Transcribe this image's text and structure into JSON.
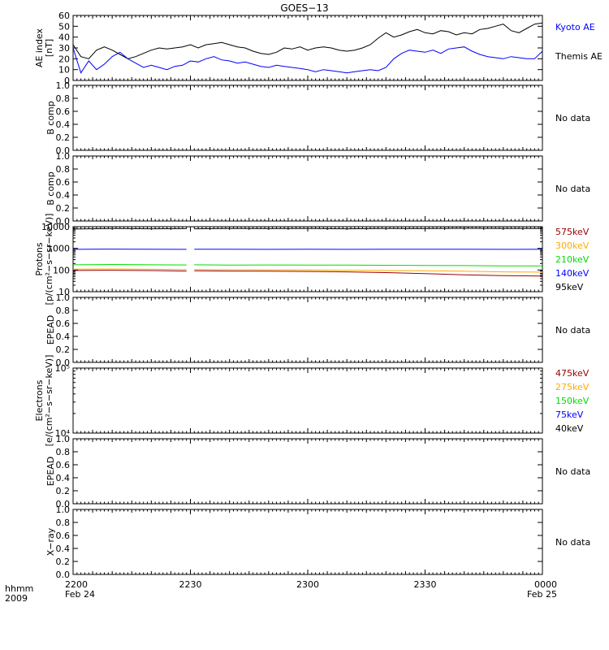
{
  "title": "GOES−13",
  "time_axis": {
    "label_line1": "hhmm",
    "label_line2": "2009",
    "start_min": 0,
    "end_min": 120,
    "ticks": [
      {
        "min": 0,
        "label": "2200",
        "sub": "Feb 24"
      },
      {
        "min": 30,
        "label": "2230",
        "sub": ""
      },
      {
        "min": 60,
        "label": "2300",
        "sub": ""
      },
      {
        "min": 90,
        "label": "2330",
        "sub": ""
      },
      {
        "min": 120,
        "label": "0000",
        "sub": "Feb 25"
      }
    ]
  },
  "colors": {
    "black": "#000000",
    "blue": "#0000ff",
    "green": "#00dd00",
    "orange": "#ffaa00",
    "darkred": "#990000"
  },
  "chart_data": [
    {
      "id": "ae",
      "type": "line",
      "ylabel": "AE index\n[nT]",
      "ylim": [
        0,
        60
      ],
      "yticks": [
        0,
        10,
        20,
        30,
        40,
        50,
        60
      ],
      "legend": [
        {
          "text": "Kyoto AE",
          "color": "#0000ff"
        },
        {
          "text": "Themis AE",
          "color": "#000000"
        }
      ],
      "series": [
        {
          "name": "Themis AE",
          "color": "#000000",
          "x": [
            0,
            2,
            4,
            6,
            8,
            10,
            12,
            14,
            16,
            18,
            20,
            22,
            24,
            26,
            28,
            30,
            32,
            34,
            36,
            38,
            40,
            42,
            44,
            46,
            48,
            50,
            52,
            54,
            56,
            58,
            60,
            62,
            64,
            66,
            68,
            70,
            72,
            74,
            76,
            78,
            80,
            82,
            84,
            86,
            88,
            90,
            92,
            94,
            96,
            98,
            100,
            102,
            104,
            106,
            108,
            110,
            112,
            114,
            116,
            118,
            120
          ],
          "y": [
            33,
            22,
            20,
            28,
            31,
            28,
            24,
            20,
            22,
            25,
            28,
            30,
            29,
            30,
            31,
            33,
            30,
            33,
            34,
            35,
            33,
            31,
            30,
            27,
            25,
            24,
            26,
            30,
            29,
            31,
            28,
            30,
            31,
            30,
            28,
            27,
            28,
            30,
            33,
            39,
            44,
            40,
            42,
            45,
            47,
            44,
            43,
            46,
            45,
            42,
            44,
            43,
            47,
            48,
            50,
            52,
            46,
            44,
            48,
            52,
            53
          ]
        },
        {
          "name": "Kyoto AE",
          "color": "#0000ff",
          "x": [
            0,
            2,
            4,
            6,
            8,
            10,
            12,
            14,
            16,
            18,
            20,
            22,
            24,
            26,
            28,
            30,
            32,
            34,
            36,
            38,
            40,
            42,
            44,
            46,
            48,
            50,
            52,
            54,
            56,
            58,
            60,
            62,
            64,
            66,
            68,
            70,
            72,
            74,
            76,
            78,
            80,
            82,
            84,
            86,
            88,
            90,
            92,
            94,
            96,
            98,
            100,
            102,
            104,
            106,
            108,
            110,
            112,
            114,
            116,
            118,
            120
          ],
          "y": [
            30,
            7,
            18,
            10,
            15,
            22,
            26,
            20,
            16,
            12,
            14,
            12,
            10,
            13,
            14,
            18,
            17,
            20,
            22,
            19,
            18,
            16,
            17,
            15,
            13,
            12,
            14,
            13,
            12,
            11,
            10,
            8,
            10,
            9,
            8,
            7,
            8,
            9,
            10,
            9,
            12,
            20,
            25,
            28,
            27,
            26,
            28,
            25,
            29,
            30,
            31,
            27,
            24,
            22,
            21,
            20,
            22,
            21,
            20,
            20,
            27
          ]
        }
      ]
    },
    {
      "id": "b1",
      "type": "line",
      "ylabel": "B comp",
      "ylim": [
        0,
        1
      ],
      "yticks": [
        0,
        0.2,
        0.4,
        0.6,
        0.8,
        1.0
      ],
      "yticklabels": [
        "0.0",
        "0.2",
        "0.4",
        "0.6",
        "0.8",
        "1.0"
      ],
      "nodata": "No data",
      "series": []
    },
    {
      "id": "b2",
      "type": "line",
      "ylabel": "B comp",
      "ylim": [
        0,
        1
      ],
      "yticks": [
        0,
        0.2,
        0.4,
        0.6,
        0.8,
        1.0
      ],
      "yticklabels": [
        "0.0",
        "0.2",
        "0.4",
        "0.6",
        "0.8",
        "1.0"
      ],
      "nodata": "No data",
      "series": []
    },
    {
      "id": "protons",
      "type": "line",
      "log": true,
      "ylabel": "Protons\n[p/(cm²−s−sr−keV)]",
      "ylim": [
        10,
        10000
      ],
      "yticks": [
        10,
        100,
        1000,
        10000
      ],
      "yticklabels": [
        "10",
        "100",
        "1000",
        "10000"
      ],
      "legend": [
        {
          "text": "575keV",
          "color": "#990000"
        },
        {
          "text": "300keV",
          "color": "#ffaa00"
        },
        {
          "text": "210keV",
          "color": "#00dd00"
        },
        {
          "text": "140keV",
          "color": "#0000ff"
        },
        {
          "text": "95keV",
          "color": "#000000"
        }
      ],
      "gap": [
        29.3,
        30.3
      ],
      "series": [
        {
          "name": "95keV",
          "color": "#000000",
          "x": [
            0,
            10,
            20,
            29,
            31,
            40,
            50,
            60,
            70,
            80,
            90,
            100,
            110,
            120
          ],
          "y": [
            7800,
            8200,
            8000,
            8100,
            8000,
            8300,
            8100,
            8200,
            8000,
            8300,
            8100,
            8400,
            8200,
            8300
          ]
        },
        {
          "name": "140keV",
          "color": "#0000ff",
          "x": [
            0,
            10,
            20,
            29,
            31,
            40,
            50,
            60,
            70,
            80,
            90,
            100,
            110,
            120
          ],
          "y": [
            900,
            920,
            910,
            900,
            905,
            910,
            900,
            905,
            900,
            910,
            905,
            910,
            900,
            910
          ]
        },
        {
          "name": "210keV",
          "color": "#00dd00",
          "x": [
            0,
            10,
            20,
            29,
            31,
            40,
            50,
            60,
            70,
            80,
            90,
            100,
            110,
            120
          ],
          "y": [
            175,
            180,
            175,
            172,
            175,
            170,
            172,
            170,
            168,
            165,
            162,
            160,
            155,
            155
          ]
        },
        {
          "name": "300keV",
          "color": "#ffaa00",
          "x": [
            0,
            10,
            20,
            29,
            31,
            40,
            50,
            60,
            70,
            80,
            90,
            100,
            110,
            120
          ],
          "y": [
            110,
            112,
            108,
            105,
            106,
            104,
            102,
            100,
            98,
            95,
            92,
            88,
            82,
            80
          ]
        },
        {
          "name": "575keV",
          "color": "#990000",
          "x": [
            0,
            10,
            20,
            29,
            31,
            40,
            50,
            60,
            70,
            80,
            90,
            100,
            110,
            120
          ],
          "y": [
            95,
            98,
            94,
            90,
            92,
            90,
            88,
            86,
            82,
            76,
            68,
            60,
            55,
            53
          ]
        }
      ]
    },
    {
      "id": "epead1",
      "type": "line",
      "ylabel": "EPEAD",
      "ylim": [
        0,
        1
      ],
      "yticks": [
        0,
        0.2,
        0.4,
        0.6,
        0.8,
        1.0
      ],
      "yticklabels": [
        "0.0",
        "0.2",
        "0.4",
        "0.6",
        "0.8",
        "1.0"
      ],
      "nodata": "No data",
      "series": []
    },
    {
      "id": "electrons",
      "type": "line",
      "log": true,
      "ylabel": "Electrons\n[e/(cm²−s−sr−keV)]",
      "ylim": [
        10000,
        100000
      ],
      "yticks": [
        10000,
        100000
      ],
      "yticklabels": [
        "10⁴",
        "10⁵"
      ],
      "legend": [
        {
          "text": "475keV",
          "color": "#990000"
        },
        {
          "text": "275keV",
          "color": "#ffaa00"
        },
        {
          "text": "150keV",
          "color": "#00dd00"
        },
        {
          "text": "75keV",
          "color": "#0000ff"
        },
        {
          "text": "40keV",
          "color": "#000000"
        }
      ],
      "series": []
    },
    {
      "id": "epead2",
      "type": "line",
      "ylabel": "EPEAD",
      "ylim": [
        0,
        1
      ],
      "yticks": [
        0,
        0.2,
        0.4,
        0.6,
        0.8,
        1.0
      ],
      "yticklabels": [
        "0.0",
        "0.2",
        "0.4",
        "0.6",
        "0.8",
        "1.0"
      ],
      "nodata": "No data",
      "series": []
    },
    {
      "id": "xray",
      "type": "line",
      "ylabel": "X−ray",
      "ylim": [
        0,
        1
      ],
      "yticks": [
        0,
        0.2,
        0.4,
        0.6,
        0.8,
        1.0
      ],
      "yticklabels": [
        "0.0",
        "0.2",
        "0.4",
        "0.6",
        "0.8",
        "1.0"
      ],
      "nodata": "No data",
      "series": []
    }
  ]
}
